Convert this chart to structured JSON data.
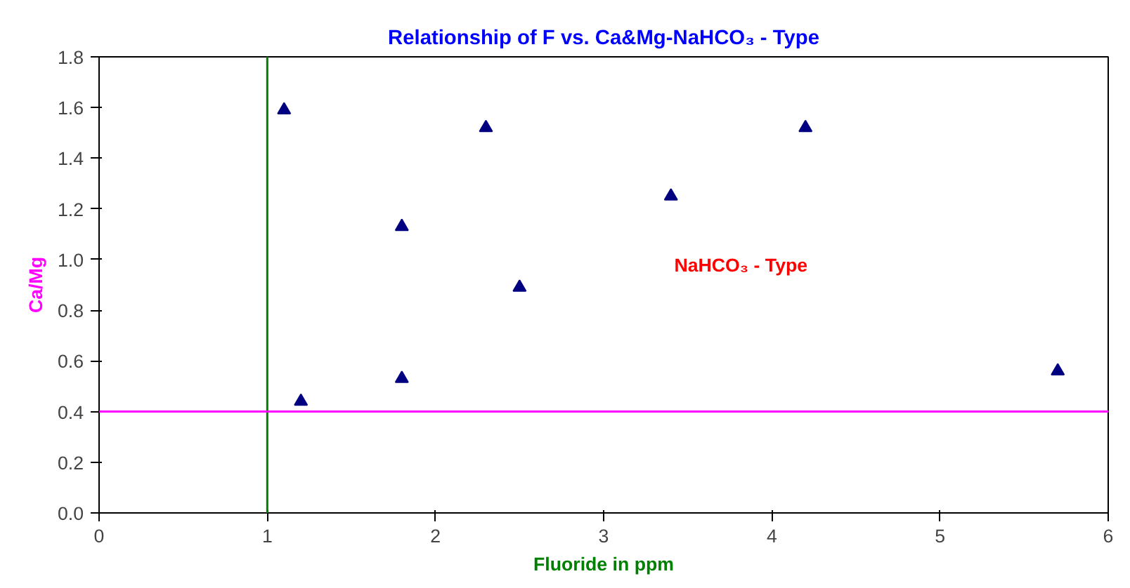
{
  "chart_data": {
    "type": "scatter",
    "title": "Relationship of F vs. Ca&Mg-NaHCO₃ - Type",
    "xlabel": "Fluoride in ppm",
    "ylabel": "Ca/Mg",
    "x": [
      1.1,
      1.2,
      1.8,
      1.8,
      2.3,
      2.5,
      3.4,
      4.2,
      5.7
    ],
    "values": [
      1.59,
      0.44,
      1.13,
      0.53,
      1.52,
      0.89,
      1.25,
      1.52,
      0.56
    ],
    "color": "#000080",
    "marker": "triangle",
    "xlim": [
      0,
      6
    ],
    "ylim": [
      0,
      1.8
    ],
    "xticks": [
      0,
      1,
      2,
      3,
      4,
      5,
      6
    ],
    "yticks": [
      {
        "value": 0,
        "label": "0.0"
      },
      {
        "value": 0.2,
        "label": "0.2"
      },
      {
        "value": 0.4,
        "label": "0.4"
      },
      {
        "value": 0.6,
        "label": "0.6"
      },
      {
        "value": 0.8,
        "label": "0.8"
      },
      {
        "value": 1.0,
        "label": "1.0"
      },
      {
        "value": 1.2,
        "label": "1.2"
      },
      {
        "value": 1.4,
        "label": "1.4"
      },
      {
        "value": 1.6,
        "label": "1.6"
      },
      {
        "value": 1.8,
        "label": "1.8"
      }
    ],
    "ref_lines": [
      {
        "axis": "x",
        "value": 1,
        "color": "#008000"
      },
      {
        "axis": "y",
        "value": 0.4,
        "color": "#ff00ff"
      }
    ],
    "annotations": [
      "NaHCO₃ - Type"
    ],
    "grid": false
  }
}
